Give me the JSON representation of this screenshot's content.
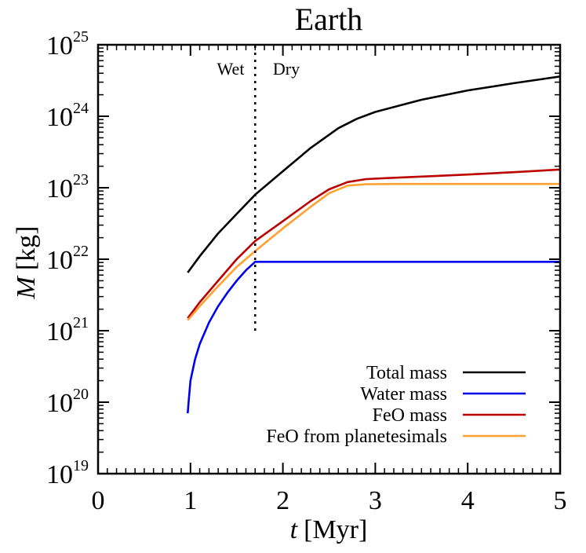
{
  "chart_data": {
    "type": "line",
    "title": "Earth",
    "xlabel": {
      "var": "t",
      "unit": "[Myr]"
    },
    "ylabel": {
      "var": "M",
      "unit": "[kg]"
    },
    "xlim": [
      0,
      5
    ],
    "ylim": [
      1e+19,
      1e+25
    ],
    "yscale": "log",
    "x_ticks": [
      0,
      1,
      2,
      3,
      4,
      5
    ],
    "y_ticks": [
      {
        "base": "10",
        "exp": "19",
        "value": 1e+19
      },
      {
        "base": "10",
        "exp": "20",
        "value": 1e+20
      },
      {
        "base": "10",
        "exp": "21",
        "value": 1e+21
      },
      {
        "base": "10",
        "exp": "22",
        "value": 1e+22
      },
      {
        "base": "10",
        "exp": "23",
        "value": 1e+23
      },
      {
        "base": "10",
        "exp": "24",
        "value": 1e+24
      },
      {
        "base": "10",
        "exp": "25",
        "value": 1e+25
      }
    ],
    "grid": false,
    "legend_position": "bottom-right",
    "region_labels": {
      "left": "Wet",
      "right": "Dry"
    },
    "divider": {
      "x": 1.7,
      "y_range": [
        1e+21,
        1e+25
      ],
      "style": "dotted"
    },
    "series": [
      {
        "name": "Total mass",
        "color": "#000000",
        "x": [
          0.97,
          1.1,
          1.3,
          1.5,
          1.7,
          2.0,
          2.3,
          2.6,
          2.8,
          3.0,
          3.5,
          4.0,
          4.5,
          5.0
        ],
        "y": [
          6.5e+21,
          1.1e+22,
          2.3e+22,
          4.3e+22,
          8e+22,
          1.7e+23,
          3.6e+23,
          6.8e+23,
          9.2e+23,
          1.15e+24,
          1.7e+24,
          2.3e+24,
          2.9e+24,
          3.6e+24
        ]
      },
      {
        "name": "Water mass",
        "color": "#0000ee",
        "x": [
          0.97,
          0.98,
          1.0,
          1.05,
          1.1,
          1.2,
          1.3,
          1.4,
          1.5,
          1.6,
          1.7,
          2.0,
          3.0,
          4.0,
          5.0
        ],
        "y": [
          7e+19,
          1e+20,
          2e+20,
          4e+20,
          6.5e+20,
          1.3e+21,
          2.2e+21,
          3.4e+21,
          5e+21,
          7e+21,
          9.2e+21,
          9.2e+21,
          9.2e+21,
          9.2e+21,
          9.2e+21
        ]
      },
      {
        "name": "FeO mass",
        "color": "#bb0000",
        "x": [
          0.97,
          1.1,
          1.3,
          1.5,
          1.7,
          2.0,
          2.3,
          2.5,
          2.7,
          2.9,
          3.2,
          3.6,
          4.0,
          4.5,
          5.0
        ],
        "y": [
          1.5e+21,
          2.5e+21,
          5e+21,
          1e+22,
          1.8e+22,
          3.4e+22,
          6.5e+22,
          9.5e+22,
          1.2e+23,
          1.32e+23,
          1.38e+23,
          1.45e+23,
          1.53e+23,
          1.65e+23,
          1.8e+23
        ]
      },
      {
        "name": "FeO from planetesimals",
        "color": "#ffa030",
        "x": [
          0.97,
          1.1,
          1.3,
          1.5,
          1.7,
          2.0,
          2.3,
          2.5,
          2.7,
          2.9,
          3.2,
          3.6,
          4.0,
          4.5,
          5.0
        ],
        "y": [
          1.4e+21,
          2.2e+21,
          4.2e+21,
          7.8e+21,
          1.3e+22,
          2.7e+22,
          5.4e+22,
          8.4e+22,
          1.07e+23,
          1.12e+23,
          1.13e+23,
          1.13e+23,
          1.13e+23,
          1.13e+23,
          1.13e+23
        ]
      }
    ]
  }
}
